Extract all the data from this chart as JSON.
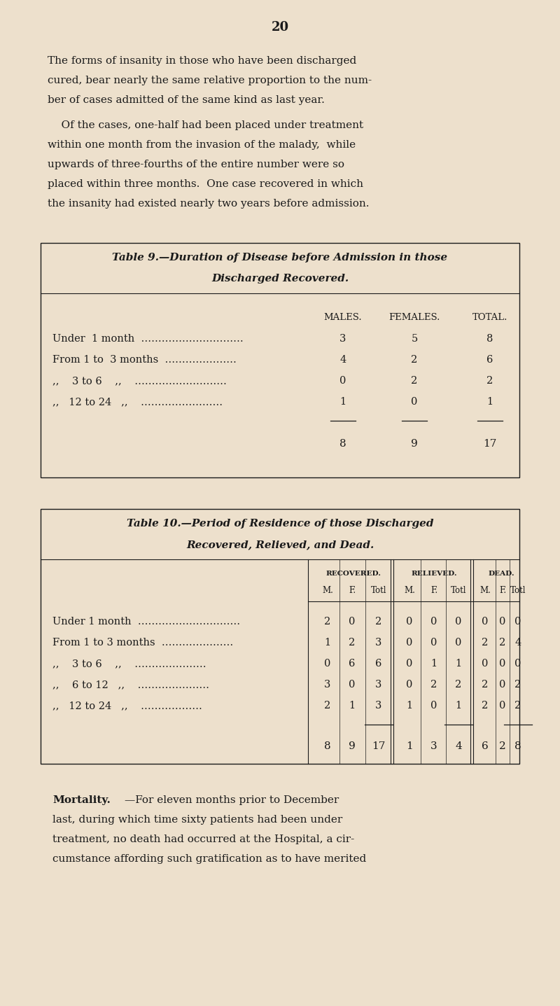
{
  "page_number": "20",
  "bg_color": "#ede0cc",
  "text_color": "#1a1a1a",
  "p1_lines": [
    "The forms of insanity in those who have been discharged",
    "cured, bear nearly the same relative proportion to the num-",
    "ber of cases admitted of the same kind as last year."
  ],
  "p2_lines": [
    "    Of the cases, one-half had been placed under treatment",
    "within one month from the invasion of the malady,  while",
    "upwards of three-fourths of the entire number were so",
    "placed within three months.  One case recovered in which",
    "the insanity had existed nearly two years before admission."
  ],
  "table9_title1": "Table 9.—Duration of Disease before Admission in those",
  "table9_title2": "Discharged Recovered.",
  "table9_col_headers": [
    "MALES.",
    "FEMALES.",
    "TOTAL."
  ],
  "table9_row_labels": [
    "Under  1 month  …………………………",
    "From 1 to  3 months  …………………",
    ",,    3 to 6    ,,    ………………………",
    ",,   12 to 24   ,,    ……………………"
  ],
  "table9_row_vals": [
    [
      "3",
      "5",
      "8"
    ],
    [
      "4",
      "2",
      "6"
    ],
    [
      "0",
      "2",
      "2"
    ],
    [
      "1",
      "0",
      "1"
    ]
  ],
  "table9_totals": [
    "8",
    "9",
    "17"
  ],
  "table10_title1": "Table 10.—Period of Residence of those Discharged",
  "table10_title2": "Recovered, Relieved, and Dead.",
  "table10_group_headers": [
    "RECOVERED.",
    "RELIEVED.",
    "DEAD."
  ],
  "table10_col_headers": [
    "M.",
    "F.",
    "Totl",
    "M.",
    "F.",
    "Totl",
    "M.",
    "F.",
    "Totl"
  ],
  "table10_row_labels": [
    "Under 1 month  …………………………",
    "From 1 to 3 months  …………………",
    ",,    3 to 6    ,,    …………………",
    ",,    6 to 12   ,,    …………………",
    ",,   12 to 24   ,,    ………………"
  ],
  "table10_row_vals": [
    [
      2,
      0,
      2,
      0,
      0,
      0,
      0,
      0,
      0
    ],
    [
      1,
      2,
      3,
      0,
      0,
      0,
      2,
      2,
      4
    ],
    [
      0,
      6,
      6,
      0,
      1,
      1,
      0,
      0,
      0
    ],
    [
      3,
      0,
      3,
      0,
      2,
      2,
      2,
      0,
      2
    ],
    [
      2,
      1,
      3,
      1,
      0,
      1,
      2,
      0,
      2
    ]
  ],
  "table10_totals": [
    8,
    9,
    17,
    1,
    3,
    4,
    6,
    2,
    8
  ],
  "mortality_word": "Mortality.",
  "mortality_rest": "—For eleven months prior to December",
  "mortality_lines": [
    "last, during which time sixty patients had been under",
    "treatment, no death had occurred at the Hospital, a cir-",
    "cumstance affording such gratification as to have merited"
  ]
}
